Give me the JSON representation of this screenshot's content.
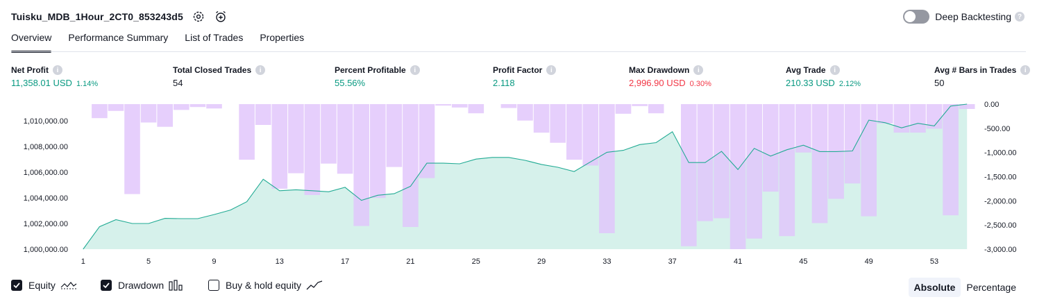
{
  "header": {
    "strategy_name": "Tuisku_MDB_1Hour_2CT0_853243d5",
    "deep_backtesting_label": "Deep Backtesting"
  },
  "tabs": [
    {
      "label": "Overview",
      "active": true
    },
    {
      "label": "Performance Summary",
      "active": false
    },
    {
      "label": "List of Trades",
      "active": false
    },
    {
      "label": "Properties",
      "active": false
    }
  ],
  "metrics": {
    "net_profit": {
      "label": "Net Profit",
      "value": "11,358.01 USD",
      "pct": "1.14%"
    },
    "total_closed_trades": {
      "label": "Total Closed Trades",
      "value": "54"
    },
    "percent_profitable": {
      "label": "Percent Profitable",
      "value": "55.56%"
    },
    "profit_factor": {
      "label": "Profit Factor",
      "value": "2.118"
    },
    "max_drawdown": {
      "label": "Max Drawdown",
      "value": "2,996.90 USD",
      "pct": "0.30%"
    },
    "avg_trade": {
      "label": "Avg Trade",
      "value": "210.33 USD",
      "pct": "2.12%"
    },
    "avg_bars": {
      "label": "Avg # Bars in Trades",
      "value": "50"
    }
  },
  "colors": {
    "equity_line": "#22ab94",
    "equity_fill": "#d6f1eb",
    "drawdown_bar": "#e1c4fb",
    "drawdown_overlap": "#c4b5f0",
    "positive": "#089981",
    "negative": "#f23645"
  },
  "chart_data": {
    "type": "area",
    "x": [
      1,
      2,
      3,
      4,
      5,
      6,
      7,
      8,
      9,
      10,
      11,
      12,
      13,
      14,
      15,
      16,
      17,
      18,
      19,
      20,
      21,
      22,
      23,
      24,
      25,
      26,
      27,
      28,
      29,
      30,
      31,
      32,
      33,
      34,
      35,
      36,
      37,
      38,
      39,
      40,
      41,
      42,
      43,
      44,
      45,
      46,
      47,
      48,
      49,
      50,
      51,
      52,
      53,
      54,
      55
    ],
    "x_ticks": [
      "1",
      "5",
      "9",
      "13",
      "17",
      "21",
      "25",
      "29",
      "33",
      "37",
      "41",
      "45",
      "49",
      "53"
    ],
    "left_axis": {
      "ticks": [
        "1,000,000.00",
        "1,002,000.00",
        "1,004,000.00",
        "1,006,000.00",
        "1,008,000.00",
        "1,010,000.00"
      ],
      "range": [
        1000000,
        1011300
      ]
    },
    "right_axis": {
      "ticks": [
        "0.00",
        "-500.00",
        "-1,000.00",
        "-1,500.00",
        "-2,000.00",
        "-2,500.00",
        "-3,000.00"
      ],
      "range": [
        -3000,
        0
      ]
    },
    "series": [
      {
        "name": "Equity",
        "axis": "left",
        "values": [
          1000000,
          1001750,
          1002300,
          1002000,
          1002000,
          1002400,
          1002380,
          1002380,
          1002700,
          1003050,
          1003700,
          1005450,
          1004550,
          1004630,
          1004550,
          1004470,
          1004820,
          1003800,
          1004200,
          1004320,
          1004900,
          1006700,
          1006700,
          1006650,
          1007020,
          1007150,
          1007150,
          1006920,
          1006600,
          1006380,
          1006050,
          1006800,
          1007550,
          1007700,
          1008150,
          1008300,
          1009150,
          1006750,
          1006750,
          1007620,
          1006200,
          1007850,
          1007250,
          1007750,
          1008100,
          1007600,
          1007600,
          1007650,
          1010050,
          1009850,
          1009450,
          1009800,
          1009600,
          1011150,
          1011300
        ]
      },
      {
        "name": "Drawdown",
        "axis": "right",
        "values": [
          0,
          -290,
          -140,
          -1860,
          -380,
          -470,
          -120,
          -60,
          -90,
          0,
          -1150,
          -430,
          -1750,
          -1430,
          -1880,
          -1230,
          -1440,
          -2520,
          -1940,
          -1300,
          -2540,
          -1530,
          -30,
          -70,
          -190,
          0,
          -80,
          -340,
          -590,
          -800,
          -1150,
          -1270,
          -2670,
          -200,
          -40,
          -190,
          0,
          -2940,
          -2420,
          -2360,
          -3000,
          -2780,
          -1810,
          -2730,
          -1000,
          -2460,
          -1960,
          -1640,
          -2320,
          -400,
          -590,
          -590,
          -510,
          -2300,
          -100
        ]
      }
    ]
  },
  "legend": {
    "items": [
      {
        "label": "Equity",
        "checked": true
      },
      {
        "label": "Drawdown",
        "checked": true
      },
      {
        "label": "Buy & hold equity",
        "checked": false
      }
    ]
  },
  "view_toggle": {
    "options": [
      "Absolute",
      "Percentage"
    ],
    "selected": "Absolute"
  }
}
